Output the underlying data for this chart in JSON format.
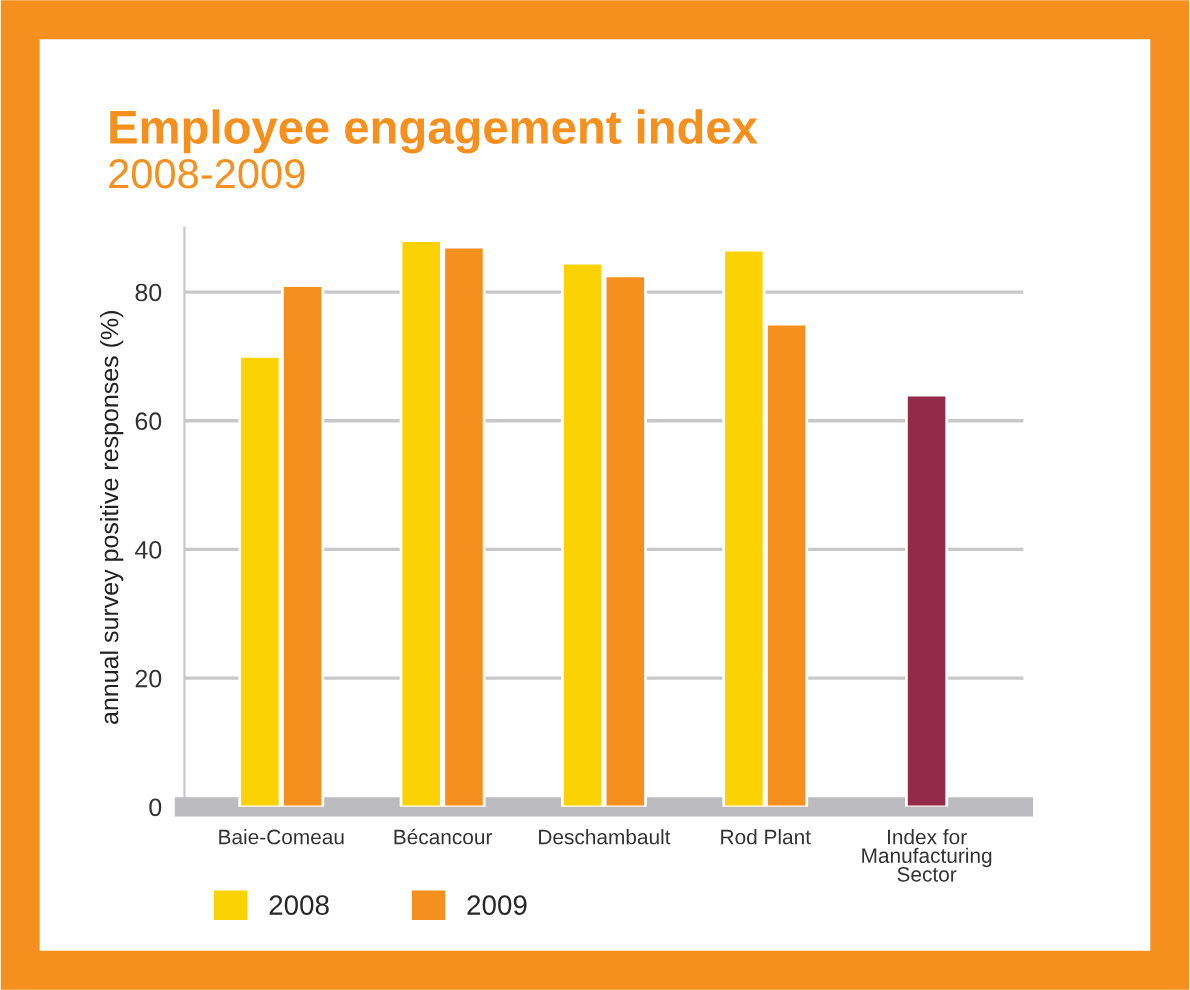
{
  "chart_data": {
    "type": "bar",
    "title": "Employee engagement index",
    "subtitle": "2008-2009",
    "ylabel": "annual survey positive responses (%)",
    "categories": [
      "Baie-Comeau",
      "Bécancour",
      "Deschambault",
      "Rod Plant",
      "Index for\nManufacturing\nSector"
    ],
    "series": [
      {
        "name": "2008",
        "color": "#fbd304",
        "values": [
          70,
          88,
          84.5,
          86.5,
          null
        ]
      },
      {
        "name": "2009",
        "color": "#f5901e",
        "values": [
          81,
          87,
          82.5,
          75,
          null
        ]
      },
      {
        "color": "#932a49",
        "values": [
          null,
          null,
          null,
          null,
          64
        ]
      }
    ],
    "ylim": [
      0,
      90
    ],
    "yticks": [
      0,
      20,
      40,
      60,
      80
    ],
    "grid": "y",
    "legend": "bottom left"
  }
}
